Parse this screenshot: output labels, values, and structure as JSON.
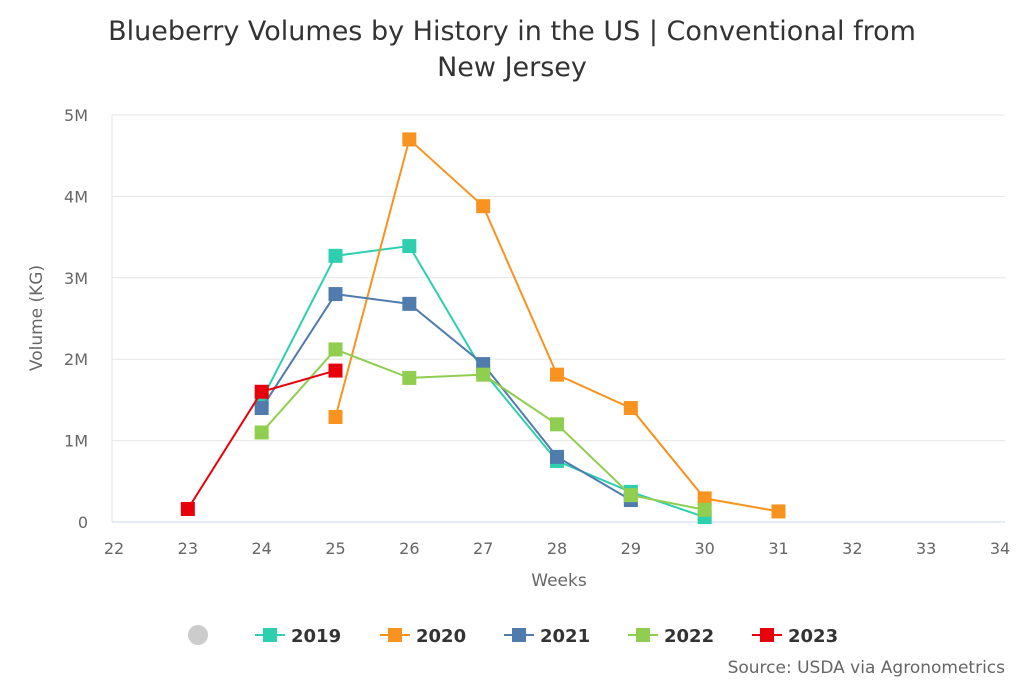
{
  "chart_data": {
    "type": "line",
    "title_line1": "Blueberry Volumes by History in the US | Conventional from",
    "title_line2": "New Jersey",
    "xlabel": "Weeks",
    "ylabel": "Volume (KG)",
    "xlim": [
      22,
      34
    ],
    "ylim": [
      0,
      5000000
    ],
    "x_ticks": [
      "22",
      "23",
      "24",
      "25",
      "26",
      "27",
      "28",
      "29",
      "30",
      "31",
      "32",
      "33",
      "34"
    ],
    "y_ticks": [
      {
        "value": 0,
        "label": "0"
      },
      {
        "value": 1000000,
        "label": "1M"
      },
      {
        "value": 2000000,
        "label": "2M"
      },
      {
        "value": 3000000,
        "label": "3M"
      },
      {
        "value": 4000000,
        "label": "4M"
      },
      {
        "value": 5000000,
        "label": "5M"
      }
    ],
    "grid": "horizontal",
    "legend_position": "bottom",
    "marker": "square",
    "series": [
      {
        "name": "2019",
        "color": "#2ecfae",
        "points": [
          [
            24,
            1500000
          ],
          [
            25,
            3270000
          ],
          [
            26,
            3390000
          ],
          [
            27,
            1850000
          ],
          [
            28,
            750000
          ],
          [
            29,
            370000
          ],
          [
            30,
            60000
          ]
        ]
      },
      {
        "name": "2020",
        "color": "#f7931e",
        "points": [
          [
            25,
            1290000
          ],
          [
            26,
            4700000
          ],
          [
            27,
            3880000
          ],
          [
            28,
            1810000
          ],
          [
            29,
            1400000
          ],
          [
            30,
            290000
          ],
          [
            31,
            130000
          ]
        ]
      },
      {
        "name": "2021",
        "color": "#4f7cac",
        "points": [
          [
            24,
            1400000
          ],
          [
            25,
            2800000
          ],
          [
            26,
            2680000
          ],
          [
            27,
            1940000
          ],
          [
            28,
            800000
          ],
          [
            29,
            270000
          ]
        ]
      },
      {
        "name": "2022",
        "color": "#8fce4f",
        "points": [
          [
            24,
            1100000
          ],
          [
            25,
            2120000
          ],
          [
            26,
            1770000
          ],
          [
            27,
            1810000
          ],
          [
            28,
            1200000
          ],
          [
            29,
            330000
          ],
          [
            30,
            150000
          ]
        ]
      },
      {
        "name": "2023",
        "color": "#e8000b",
        "points": [
          [
            23,
            160000
          ],
          [
            24,
            1600000
          ],
          [
            25,
            1860000
          ]
        ]
      }
    ],
    "source": "Source: USDA via Agronometrics"
  }
}
